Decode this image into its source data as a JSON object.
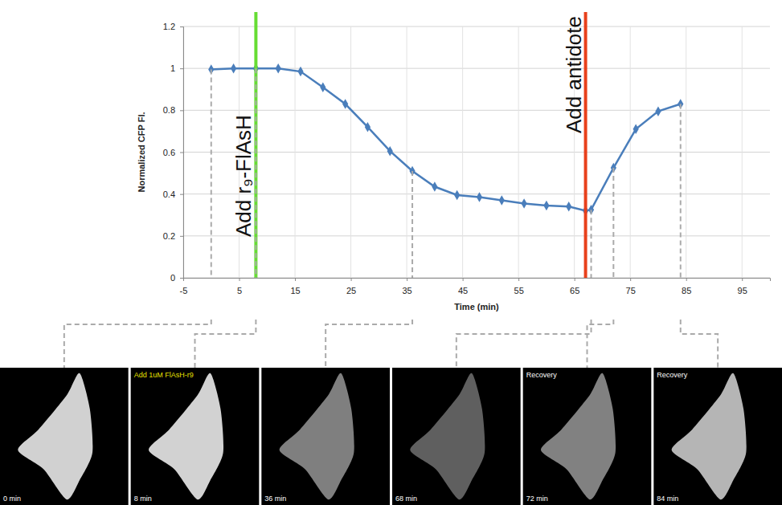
{
  "chart_data": {
    "type": "line",
    "x_label": "Time (min)",
    "y_label": "Normalized CFP Fl.",
    "x": [
      0,
      4,
      8,
      12,
      16,
      20,
      24,
      28,
      32,
      36,
      40,
      44,
      48,
      52,
      56,
      60,
      64,
      67,
      68,
      72,
      76,
      80,
      84
    ],
    "values": [
      0.995,
      1.0,
      1.0,
      1.0,
      0.985,
      0.91,
      0.83,
      0.72,
      0.605,
      0.51,
      0.435,
      0.395,
      0.385,
      0.37,
      0.355,
      0.345,
      0.34,
      0.32,
      0.325,
      0.525,
      0.71,
      0.795,
      0.83
    ],
    "color": "#4a7ebb",
    "marker": "diamond",
    "xlim": [
      -5,
      100
    ],
    "xticks": [
      -5,
      5,
      15,
      25,
      35,
      45,
      55,
      65,
      75,
      85,
      95
    ],
    "ylim": [
      0,
      1.2
    ],
    "yticks": [
      0,
      0.2,
      0.4,
      0.6,
      0.8,
      1,
      1.2
    ],
    "grid": true,
    "annotations": [
      {
        "text": "Add r₉-FlAsH",
        "x": 8,
        "color": "#66dd33"
      },
      {
        "text": "Add antidote",
        "x": 67,
        "color": "#e8401c"
      }
    ]
  },
  "panels": [
    {
      "label": "0 min",
      "time": 0
    },
    {
      "label": "8 min",
      "time": 8,
      "caption": "Add 1uM FlAsH-r9",
      "color": "#e8e000"
    },
    {
      "label": "36 min",
      "time": 36
    },
    {
      "label": "68 min",
      "time": 68
    },
    {
      "label": "72 min",
      "time": 72,
      "caption": "Recovery",
      "color": "#ffffff"
    },
    {
      "label": "84 min",
      "time": 84,
      "caption": "Recovery",
      "color": "#ffffff"
    }
  ]
}
